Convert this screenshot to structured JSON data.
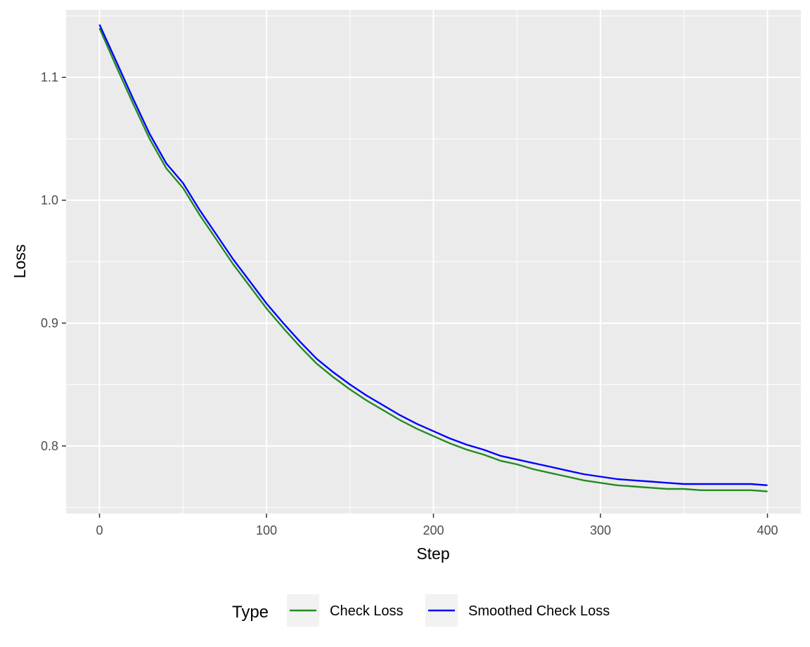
{
  "chart_data": {
    "type": "line",
    "title": "",
    "xlabel": "Step",
    "ylabel": "Loss",
    "xlim": [
      -20,
      420
    ],
    "ylim": [
      0.745,
      1.155
    ],
    "x_ticks": [
      0,
      100,
      200,
      300,
      400
    ],
    "x_tick_labels": [
      "0",
      "100",
      "200",
      "300",
      "400"
    ],
    "y_ticks": [
      0.8,
      0.9,
      1.0,
      1.1
    ],
    "y_tick_labels": [
      "0.8",
      "0.9",
      "1.0",
      "1.1"
    ],
    "grid": true,
    "legend": {
      "title": "Type",
      "placement": "bottom",
      "entries": [
        "Check Loss",
        "Smoothed Check Loss"
      ]
    },
    "series": [
      {
        "name": "Check Loss",
        "color": "#228B22",
        "x": [
          0,
          10,
          20,
          30,
          40,
          50,
          60,
          70,
          80,
          90,
          100,
          110,
          120,
          130,
          140,
          150,
          160,
          170,
          180,
          190,
          200,
          210,
          220,
          230,
          240,
          250,
          260,
          270,
          280,
          290,
          300,
          310,
          320,
          330,
          340,
          350,
          360,
          370,
          380,
          390,
          400
        ],
        "y": [
          1.14,
          1.109,
          1.079,
          1.05,
          1.026,
          1.01,
          0.988,
          0.968,
          0.948,
          0.93,
          0.912,
          0.896,
          0.881,
          0.867,
          0.856,
          0.846,
          0.837,
          0.829,
          0.821,
          0.814,
          0.808,
          0.802,
          0.797,
          0.793,
          0.788,
          0.785,
          0.781,
          0.778,
          0.775,
          0.772,
          0.77,
          0.768,
          0.767,
          0.766,
          0.765,
          0.765,
          0.764,
          0.764,
          0.764,
          0.764,
          0.763
        ]
      },
      {
        "name": "Smoothed Check Loss",
        "color": "#0000FF",
        "x": [
          0,
          10,
          20,
          30,
          40,
          50,
          60,
          70,
          80,
          90,
          100,
          110,
          120,
          130,
          140,
          150,
          160,
          170,
          180,
          190,
          200,
          210,
          220,
          230,
          240,
          250,
          260,
          270,
          280,
          290,
          300,
          310,
          320,
          330,
          340,
          350,
          360,
          370,
          380,
          390,
          400
        ],
        "y": [
          1.143,
          1.113,
          1.083,
          1.054,
          1.03,
          1.014,
          0.992,
          0.972,
          0.952,
          0.934,
          0.916,
          0.9,
          0.885,
          0.871,
          0.86,
          0.85,
          0.841,
          0.833,
          0.825,
          0.818,
          0.812,
          0.806,
          0.801,
          0.797,
          0.792,
          0.789,
          0.786,
          0.783,
          0.78,
          0.777,
          0.775,
          0.773,
          0.772,
          0.771,
          0.77,
          0.769,
          0.769,
          0.769,
          0.769,
          0.769,
          0.768
        ]
      }
    ]
  }
}
